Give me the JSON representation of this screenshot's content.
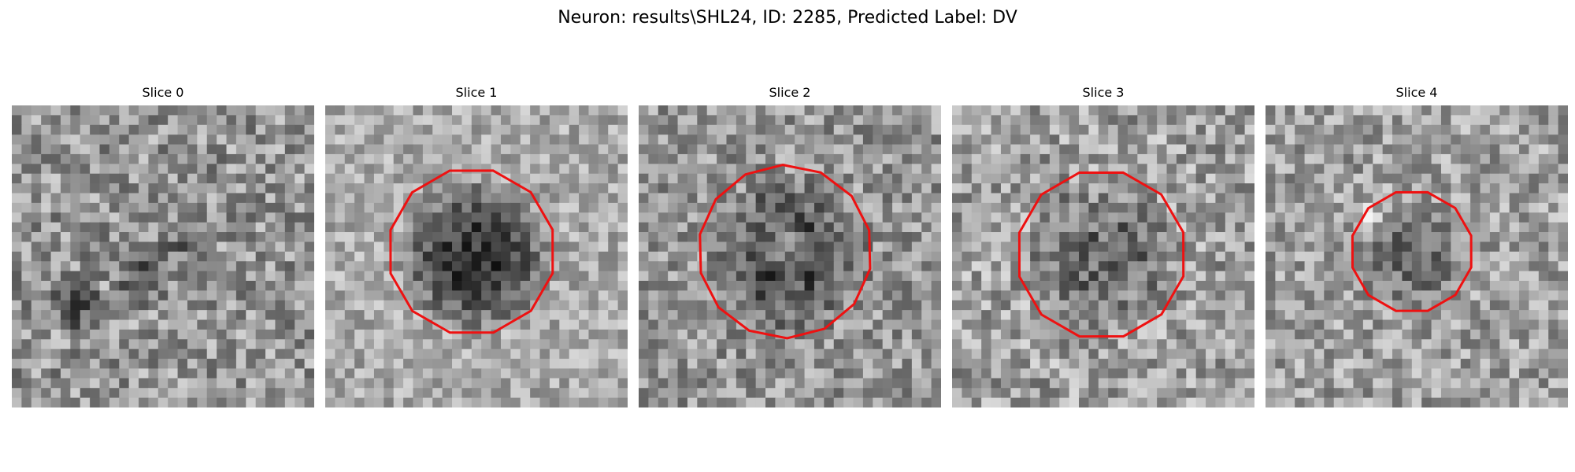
{
  "figure": {
    "title": "Neuron: results\\SHL24, ID: 2285, Predicted Label: DV",
    "contour_color": "#ee1111"
  },
  "panels": [
    {
      "title": "Slice 0"
    },
    {
      "title": "Slice 1"
    },
    {
      "title": "Slice 2"
    },
    {
      "title": "Slice 3"
    },
    {
      "title": "Slice 4"
    }
  ]
}
